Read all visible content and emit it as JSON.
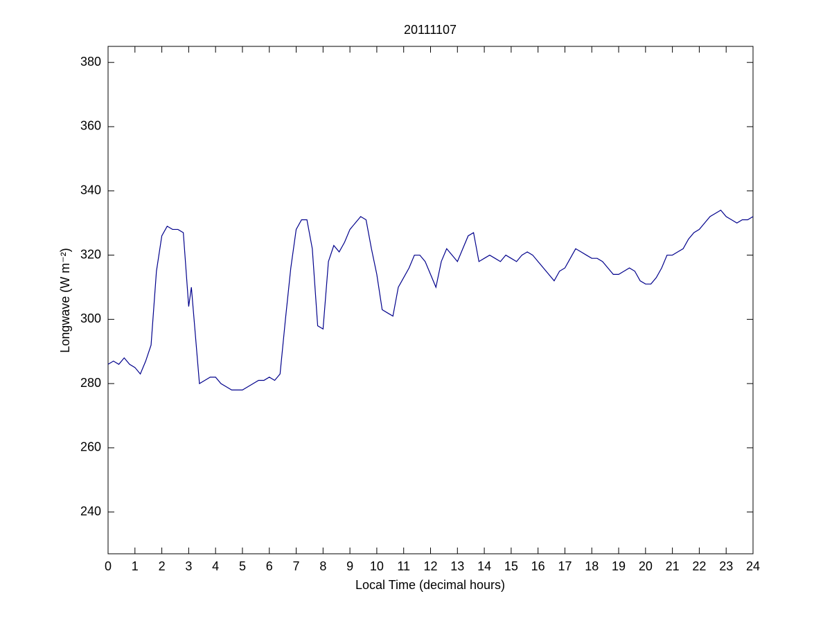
{
  "chart_data": {
    "type": "line",
    "title": "20111107",
    "xlabel": "Local Time (decimal hours)",
    "ylabel": "Longwave (W m⁻²)",
    "x": [
      0,
      0.2,
      0.4,
      0.6,
      0.8,
      1.0,
      1.2,
      1.4,
      1.6,
      1.8,
      2.0,
      2.2,
      2.4,
      2.6,
      2.8,
      3.0,
      3.1,
      3.2,
      3.4,
      3.6,
      3.8,
      4.0,
      4.2,
      4.4,
      4.6,
      4.8,
      5.0,
      5.2,
      5.4,
      5.6,
      5.8,
      6.0,
      6.2,
      6.4,
      6.6,
      6.8,
      7.0,
      7.2,
      7.4,
      7.6,
      7.8,
      8.0,
      8.2,
      8.4,
      8.6,
      8.8,
      9.0,
      9.2,
      9.4,
      9.6,
      9.8,
      10.0,
      10.2,
      10.4,
      10.6,
      10.8,
      11.0,
      11.2,
      11.4,
      11.6,
      11.8,
      12.0,
      12.2,
      12.4,
      12.6,
      12.8,
      13.0,
      13.2,
      13.4,
      13.6,
      13.8,
      14.0,
      14.2,
      14.4,
      14.6,
      14.8,
      15.0,
      15.2,
      15.4,
      15.6,
      15.8,
      16.0,
      16.2,
      16.4,
      16.6,
      16.8,
      17.0,
      17.2,
      17.4,
      17.6,
      17.8,
      18.0,
      18.2,
      18.4,
      18.6,
      18.8,
      19.0,
      19.2,
      19.4,
      19.6,
      19.8,
      20.0,
      20.2,
      20.4,
      20.6,
      20.8,
      21.0,
      21.2,
      21.4,
      21.6,
      21.8,
      22.0,
      22.2,
      22.4,
      22.6,
      22.8,
      23.0,
      23.2,
      23.4,
      23.6,
      23.8,
      24.0
    ],
    "series": [
      {
        "name": "Longwave",
        "color": "#00008b",
        "values": [
          286,
          287,
          286,
          288,
          286,
          285,
          283,
          287,
          292,
          315,
          326,
          329,
          328,
          328,
          327,
          304,
          310,
          300,
          280,
          281,
          282,
          282,
          280,
          279,
          278,
          278,
          278,
          279,
          280,
          281,
          281,
          282,
          281,
          283,
          300,
          316,
          328,
          331,
          331,
          322,
          298,
          297,
          318,
          323,
          321,
          324,
          328,
          330,
          332,
          331,
          322,
          314,
          303,
          302,
          301,
          310,
          313,
          316,
          320,
          320,
          318,
          314,
          310,
          318,
          322,
          320,
          318,
          322,
          326,
          327,
          318,
          319,
          320,
          319,
          318,
          320,
          319,
          318,
          320,
          321,
          320,
          318,
          316,
          314,
          312,
          315,
          316,
          319,
          322,
          321,
          320,
          319,
          319,
          318,
          316,
          314,
          314,
          315,
          316,
          315,
          312,
          311,
          311,
          313,
          316,
          320,
          320,
          321,
          322,
          325,
          327,
          328,
          330,
          332,
          333,
          334,
          332,
          331,
          330,
          331,
          331,
          332
        ]
      }
    ],
    "xlim": [
      0,
      24
    ],
    "xticks": [
      0,
      1,
      2,
      3,
      4,
      5,
      6,
      7,
      8,
      9,
      10,
      11,
      12,
      13,
      14,
      15,
      16,
      17,
      18,
      19,
      20,
      21,
      22,
      23,
      24
    ],
    "ylim": [
      227,
      385
    ],
    "yticks": [
      240,
      260,
      280,
      300,
      320,
      340,
      360,
      380
    ]
  }
}
